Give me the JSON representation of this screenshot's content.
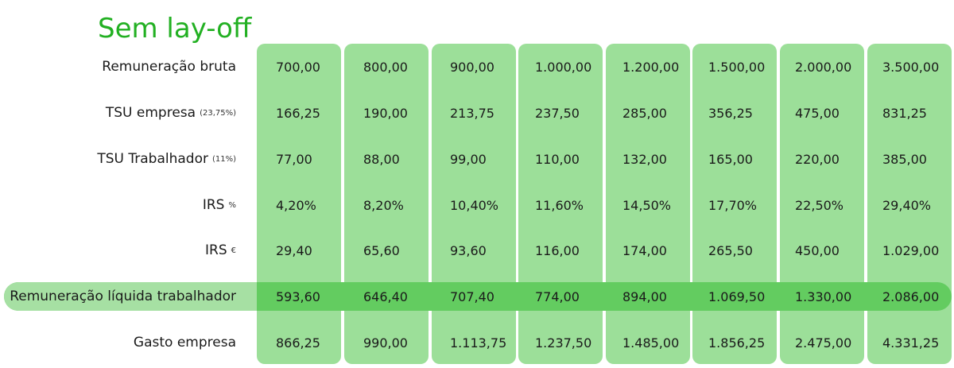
{
  "title": "Sem lay-off",
  "rows": [
    {
      "label": "Remuneração bruta",
      "sub": "",
      "values": [
        "700,00",
        "800,00",
        "900,00",
        "1.000,00",
        "1.200,00",
        "1.500,00",
        "2.000,00",
        "3.500,00"
      ]
    },
    {
      "label": "TSU empresa",
      "sub": "(23,75%)",
      "values": [
        "166,25",
        "190,00",
        "213,75",
        "237,50",
        "285,00",
        "356,25",
        "475,00",
        "831,25"
      ]
    },
    {
      "label": "TSU Trabalhador",
      "sub": "(11%)",
      "values": [
        "77,00",
        "88,00",
        "99,00",
        "110,00",
        "132,00",
        "165,00",
        "220,00",
        "385,00"
      ]
    },
    {
      "label": "IRS",
      "sub": "%",
      "values": [
        "4,20%",
        "8,20%",
        "10,40%",
        "11,60%",
        "14,50%",
        "17,70%",
        "22,50%",
        "29,40%"
      ]
    },
    {
      "label": "IRS",
      "sub": "€",
      "values": [
        "29,40",
        "65,60",
        "93,60",
        "116,00",
        "174,00",
        "265,50",
        "450,00",
        "1.029,00"
      ]
    },
    {
      "label": "Remuneração líquida trabalhador",
      "sub": "",
      "values": [
        "593,60",
        "646,40",
        "707,40",
        "774,00",
        "894,00",
        "1.069,50",
        "1.330,00",
        "2.086,00"
      ]
    },
    {
      "label": "Gasto empresa",
      "sub": "",
      "values": [
        "866,25",
        "990,00",
        "1.113,75",
        "1.237,50",
        "1.485,00",
        "1.856,25",
        "2.475,00",
        "4.331,25"
      ]
    }
  ]
}
